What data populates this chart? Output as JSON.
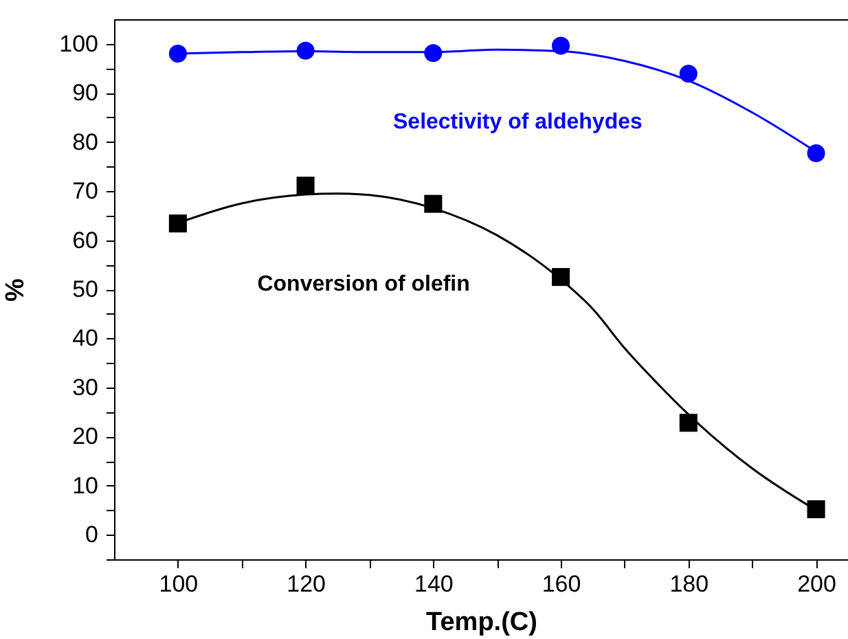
{
  "chart_data": {
    "type": "scatter",
    "xlabel": "Temp.(C)",
    "ylabel": "%",
    "xlim": [
      90,
      205
    ],
    "ylim": [
      -5,
      105
    ],
    "xticks": [
      100,
      {
        "value": 110,
        "label": null
      },
      120,
      {
        "value": 130,
        "label": null
      },
      140,
      {
        "value": 150,
        "label": null
      },
      160,
      {
        "value": 170,
        "label": null
      },
      180,
      {
        "value": 190,
        "label": null
      },
      200
    ],
    "yticks": [
      {
        "value": -5,
        "label": null
      },
      0,
      {
        "value": 5,
        "label": null
      },
      10,
      {
        "value": 15,
        "label": null
      },
      20,
      {
        "value": 25,
        "label": null
      },
      30,
      {
        "value": 35,
        "label": null
      },
      40,
      {
        "value": 45,
        "label": null
      },
      50,
      {
        "value": 55,
        "label": null
      },
      60,
      {
        "value": 65,
        "label": null
      },
      70,
      {
        "value": 75,
        "label": null
      },
      80,
      {
        "value": 85,
        "label": null
      },
      90,
      {
        "value": 95,
        "label": null
      },
      100
    ],
    "series": [
      {
        "name": "Selectivity of aldehydes",
        "color": "#0000ff",
        "marker": "circle",
        "x": [
          100,
          120,
          140,
          160,
          180,
          200
        ],
        "values": [
          98,
          98.6,
          98.1,
          99.6,
          93.9,
          77.7
        ]
      },
      {
        "name": "Conversion of olefin",
        "color": "#000000",
        "marker": "square",
        "x": [
          100,
          120,
          140,
          160,
          180,
          200
        ],
        "values": [
          63.4,
          71.1,
          67.4,
          52.5,
          22.8,
          5.2
        ]
      },
      {
        "type": "line",
        "color": "#0000ff",
        "marker": "none",
        "x": [
          100,
          110,
          120,
          130,
          140,
          150,
          160,
          170,
          180,
          190,
          200
        ],
        "values": [
          98,
          98.3,
          98.5,
          98.3,
          98.3,
          98.8,
          98.5,
          96.5,
          92.5,
          86,
          78
        ]
      },
      {
        "type": "line",
        "color": "#000000",
        "marker": "none",
        "x": [
          100,
          110,
          120,
          125,
          130,
          140,
          150,
          160,
          165,
          170,
          175,
          180,
          190,
          200
        ],
        "values": [
          63.5,
          67.5,
          69.3,
          69.5,
          69.2,
          66.5,
          61,
          52,
          46,
          38,
          31,
          24.5,
          13.5,
          5
        ]
      }
    ]
  }
}
